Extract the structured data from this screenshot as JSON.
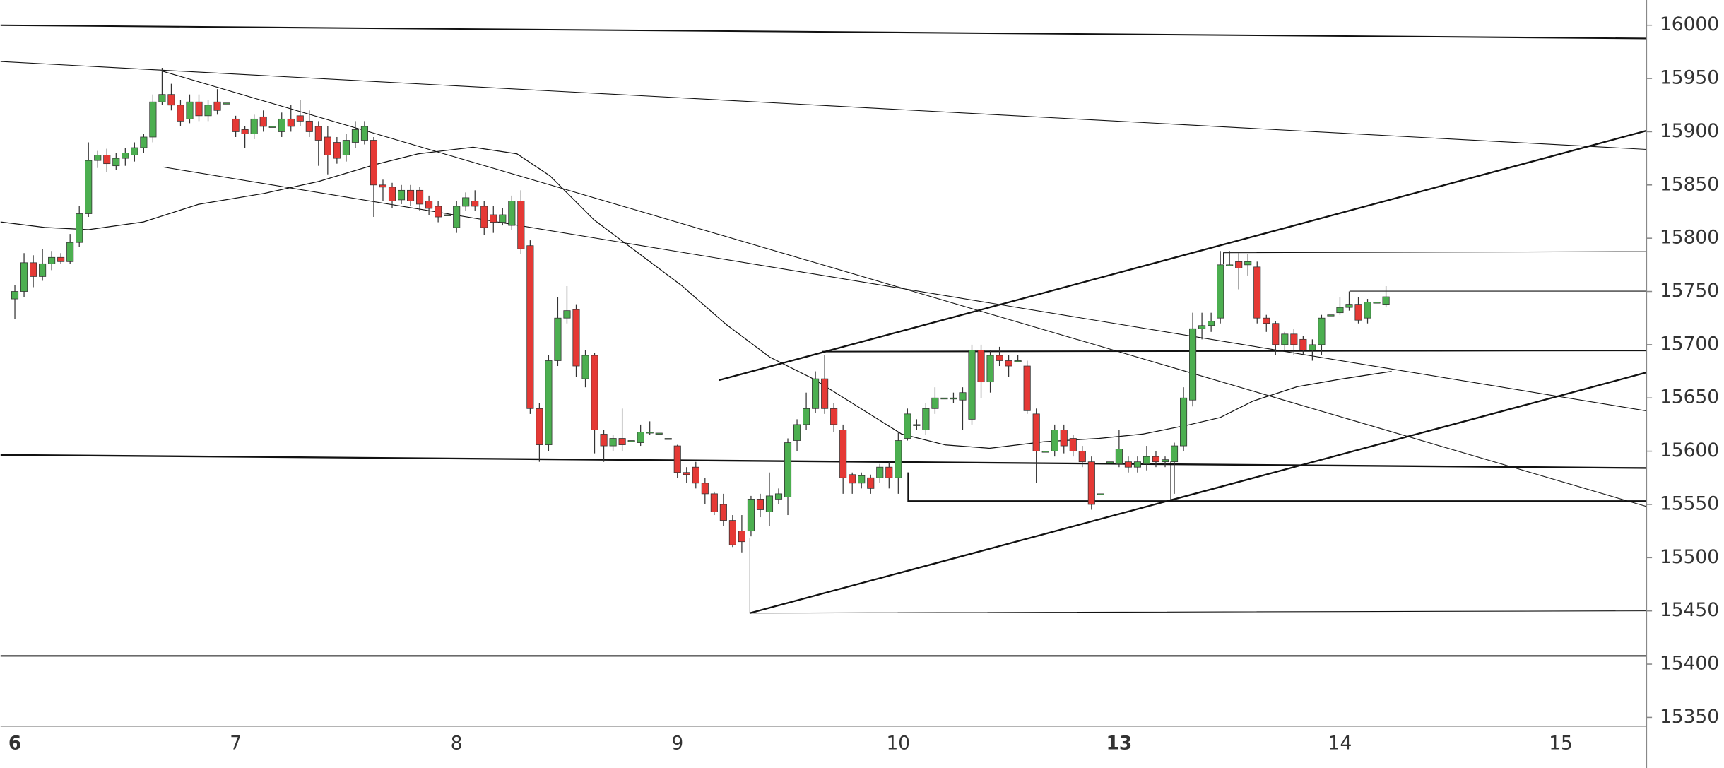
{
  "chart_data": {
    "type": "candlestick",
    "x_labels": [
      "6",
      "7",
      "8",
      "9",
      "10",
      "13",
      "14",
      "15"
    ],
    "ylim": [
      15341.7,
      16023.7
    ],
    "yticks": [
      15350,
      15400,
      15450,
      15500,
      15550,
      15600,
      15650,
      15700,
      15750,
      15800,
      15850,
      15900,
      15950,
      16000
    ],
    "up_color": "#4caf50",
    "down_color": "#e53935",
    "open": [
      15743,
      15750,
      15777,
      15764,
      15776,
      15782,
      15778,
      15796,
      15823,
      15873,
      15878,
      15868,
      15875,
      15878,
      15885,
      15895,
      15928,
      15935,
      15925,
      15912,
      15928,
      15915,
      15928,
      15927,
      15912,
      15902,
      15898,
      15914,
      15905,
      15900,
      15912,
      15915,
      15910,
      15905,
      15895,
      15890,
      15878,
      15890,
      15892,
      15892,
      15850,
      15848,
      15836,
      15845,
      15845,
      15835,
      15830,
      15822,
      15810,
      15830,
      15835,
      15830,
      15822,
      15815,
      15812,
      15835,
      15793,
      15640,
      15606,
      15685,
      15725,
      15733,
      15668,
      15690,
      15616,
      15605,
      15612,
      15610,
      15608,
      15618,
      15617,
      15612,
      15605,
      15580,
      15585,
      15570,
      15560,
      15550,
      15535,
      15525,
      15525,
      15555,
      15543,
      15555,
      15557,
      15610,
      15625,
      15640,
      15668,
      15640,
      15620,
      15578,
      15570,
      15575,
      15575,
      15585,
      15575,
      15612,
      15625,
      15620,
      15640,
      15650,
      15650,
      15648,
      15630,
      15695,
      15665,
      15690,
      15685,
      15685,
      15680,
      15635,
      15600,
      15600,
      15620,
      15612,
      15600,
      15590,
      15560,
      15590,
      15588,
      15590,
      15585,
      15588,
      15595,
      15590,
      15590,
      15605,
      15648,
      15715,
      15718,
      15725,
      15775,
      15778,
      15775,
      15773,
      15725,
      15720,
      15700,
      15710,
      15705,
      15695,
      15700,
      15728,
      15730,
      15735,
      15738,
      15725,
      15740,
      15738
    ],
    "high": [
      15756,
      15786,
      15784,
      15790,
      15788,
      15786,
      15804,
      15830,
      15890,
      15882,
      15884,
      15880,
      15885,
      15890,
      15898,
      15935,
      15960,
      15945,
      15930,
      15935,
      15935,
      15930,
      15940,
      15927,
      15915,
      15905,
      15916,
      15920,
      15905,
      15918,
      15925,
      15930,
      15920,
      15910,
      15905,
      15895,
      15898,
      15910,
      15910,
      15895,
      15855,
      15852,
      15850,
      15850,
      15848,
      15840,
      15835,
      15822,
      15835,
      15843,
      15845,
      15835,
      15830,
      15828,
      15840,
      15845,
      15798,
      15645,
      15690,
      15745,
      15755,
      15738,
      15695,
      15692,
      15620,
      15615,
      15640,
      15610,
      15625,
      15628,
      15617,
      15612,
      15606,
      15585,
      15590,
      15575,
      15562,
      15560,
      15540,
      15540,
      15558,
      15560,
      15580,
      15565,
      15612,
      15630,
      15655,
      15675,
      15690,
      15645,
      15625,
      15580,
      15580,
      15578,
      15588,
      15590,
      15618,
      15640,
      15630,
      15645,
      15660,
      15650,
      15655,
      15660,
      15700,
      15700,
      15695,
      15698,
      15690,
      15690,
      15685,
      15640,
      15600,
      15625,
      15625,
      15615,
      15605,
      15595,
      15560,
      15590,
      15620,
      15595,
      15595,
      15605,
      15600,
      15595,
      15608,
      15660,
      15730,
      15730,
      15730,
      15788,
      15788,
      15786,
      15785,
      15778,
      15728,
      15722,
      15712,
      15715,
      15708,
      15705,
      15728,
      15728,
      15745,
      15750,
      15745,
      15743,
      15740,
      15755
    ],
    "low": [
      15724,
      15745,
      15754,
      15760,
      15770,
      15776,
      15776,
      15792,
      15820,
      15866,
      15862,
      15864,
      15868,
      15872,
      15880,
      15890,
      15925,
      15920,
      15905,
      15908,
      15910,
      15910,
      15916,
      15927,
      15895,
      15885,
      15893,
      15900,
      15905,
      15895,
      15900,
      15905,
      15895,
      15868,
      15860,
      15870,
      15872,
      15885,
      15888,
      15820,
      15835,
      15828,
      15832,
      15830,
      15826,
      15822,
      15815,
      15822,
      15805,
      15826,
      15826,
      15803,
      15805,
      15812,
      15808,
      15785,
      15635,
      15590,
      15600,
      15680,
      15720,
      15670,
      15660,
      15598,
      15590,
      15600,
      15600,
      15610,
      15605,
      15615,
      15617,
      15612,
      15575,
      15570,
      15565,
      15550,
      15540,
      15530,
      15510,
      15505,
      15520,
      15538,
      15530,
      15550,
      15540,
      15600,
      15620,
      15636,
      15635,
      15618,
      15560,
      15560,
      15565,
      15560,
      15570,
      15565,
      15560,
      15610,
      15620,
      15615,
      15635,
      15650,
      15645,
      15620,
      15625,
      15650,
      15655,
      15680,
      15670,
      15685,
      15635,
      15570,
      15600,
      15595,
      15598,
      15595,
      15585,
      15545,
      15560,
      15590,
      15585,
      15580,
      15580,
      15582,
      15585,
      15585,
      15560,
      15600,
      15642,
      15705,
      15712,
      15720,
      15775,
      15752,
      15765,
      15720,
      15712,
      15690,
      15695,
      15690,
      15690,
      15685,
      15690,
      15728,
      15728,
      15732,
      15720,
      15720,
      15740,
      15735
    ],
    "close": [
      15750,
      15777,
      15764,
      15776,
      15782,
      15778,
      15796,
      15823,
      15873,
      15878,
      15870,
      15875,
      15880,
      15885,
      15895,
      15928,
      15935,
      15925,
      15910,
      15928,
      15915,
      15925,
      15920,
      15927,
      15900,
      15898,
      15912,
      15905,
      15905,
      15912,
      15905,
      15910,
      15900,
      15892,
      15878,
      15875,
      15892,
      15902,
      15905,
      15850,
      15848,
      15835,
      15845,
      15835,
      15832,
      15828,
      15820,
      15822,
      15830,
      15838,
      15830,
      15810,
      15815,
      15822,
      15835,
      15790,
      15640,
      15606,
      15685,
      15725,
      15732,
      15680,
      15690,
      15620,
      15605,
      15612,
      15606,
      15610,
      15618,
      15618,
      15617,
      15612,
      15580,
      15578,
      15570,
      15560,
      15543,
      15535,
      15512,
      15515,
      15555,
      15545,
      15558,
      15560,
      15608,
      15625,
      15640,
      15668,
      15640,
      15625,
      15575,
      15570,
      15577,
      15565,
      15585,
      15575,
      15610,
      15635,
      15625,
      15640,
      15650,
      15650,
      15650,
      15655,
      15695,
      15665,
      15690,
      15685,
      15680,
      15685,
      15638,
      15600,
      15600,
      15620,
      15605,
      15600,
      15590,
      15550,
      15560,
      15590,
      15602,
      15585,
      15590,
      15595,
      15590,
      15592,
      15605,
      15650,
      15715,
      15718,
      15722,
      15775,
      15775,
      15772,
      15778,
      15725,
      15720,
      15700,
      15710,
      15700,
      15695,
      15700,
      15725,
      15728,
      15735,
      15738,
      15723,
      15740,
      15740,
      15745
    ]
  }
}
